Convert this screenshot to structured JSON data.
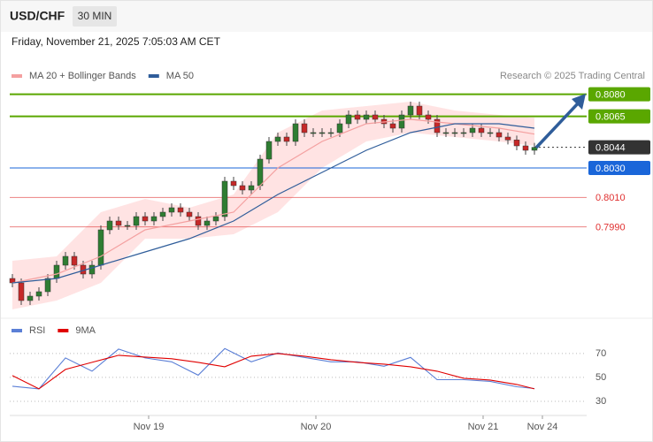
{
  "header": {
    "symbol": "USD/CHF",
    "interval": "30 MIN",
    "timestamp": "Friday, November 21, 2025 7:05:03 AM CET"
  },
  "chart_data": [
    {
      "type": "candlestick",
      "annotation": "Research © 2025 Trading Central",
      "xlim": [
        -0.3,
        64.9
      ],
      "ylim": [
        0.7931,
        0.8108
      ],
      "up_color": "#2e7d32",
      "down_color": "#c62828",
      "open": [
        0.7955,
        0.7952,
        0.794,
        0.7943,
        0.7946,
        0.7955,
        0.7964,
        0.797,
        0.7964,
        0.7958,
        0.7964,
        0.7988,
        0.7994,
        0.7991,
        0.7991,
        0.7997,
        0.7994,
        0.7997,
        0.8,
        0.8003,
        0.8,
        0.7997,
        0.7991,
        0.7994,
        0.7997,
        0.8021,
        0.8018,
        0.8015,
        0.8018,
        0.8036,
        0.8048,
        0.8051,
        0.8048,
        0.806,
        0.8054,
        0.8054,
        0.8054,
        0.8054,
        0.806,
        0.8066,
        0.8063,
        0.8066,
        0.8063,
        0.806,
        0.8057,
        0.8066,
        0.8072,
        0.8066,
        0.8063,
        0.8054,
        0.8054,
        0.8054,
        0.8054,
        0.8057,
        0.8054,
        0.8054,
        0.8051,
        0.8049,
        0.8045,
        0.8042
      ],
      "high": [
        0.7958,
        0.7955,
        0.7946,
        0.7949,
        0.7958,
        0.7967,
        0.7973,
        0.7973,
        0.7967,
        0.7967,
        0.7991,
        0.7997,
        0.7997,
        0.7994,
        0.8,
        0.8,
        0.8,
        0.8003,
        0.8006,
        0.8006,
        0.8003,
        0.8,
        0.7997,
        0.8,
        0.8024,
        0.8024,
        0.8021,
        0.8021,
        0.8039,
        0.8051,
        0.8054,
        0.8054,
        0.8063,
        0.8063,
        0.8057,
        0.8057,
        0.8057,
        0.8063,
        0.8069,
        0.8069,
        0.8069,
        0.8069,
        0.8066,
        0.8063,
        0.8069,
        0.8075,
        0.8075,
        0.8069,
        0.8066,
        0.8057,
        0.8057,
        0.8057,
        0.806,
        0.806,
        0.8057,
        0.8057,
        0.8054,
        0.8052,
        0.8048,
        0.8047
      ],
      "low": [
        0.7949,
        0.7937,
        0.7937,
        0.794,
        0.7943,
        0.7952,
        0.7961,
        0.7961,
        0.7955,
        0.7955,
        0.7961,
        0.7985,
        0.7988,
        0.7988,
        0.7988,
        0.7991,
        0.7991,
        0.7994,
        0.7997,
        0.7997,
        0.7994,
        0.7988,
        0.7988,
        0.7991,
        0.7994,
        0.8015,
        0.8012,
        0.8012,
        0.8015,
        0.8033,
        0.8045,
        0.8045,
        0.8045,
        0.8051,
        0.8051,
        0.8051,
        0.8051,
        0.8051,
        0.8057,
        0.806,
        0.806,
        0.806,
        0.8057,
        0.8054,
        0.8054,
        0.8063,
        0.8063,
        0.806,
        0.8051,
        0.8051,
        0.8051,
        0.8051,
        0.8051,
        0.8051,
        0.8051,
        0.8048,
        0.8046,
        0.8042,
        0.8039,
        0.8039
      ],
      "close": [
        0.7952,
        0.794,
        0.7943,
        0.7946,
        0.7955,
        0.7964,
        0.797,
        0.7964,
        0.7958,
        0.7964,
        0.7988,
        0.7994,
        0.7991,
        0.7991,
        0.7997,
        0.7994,
        0.7997,
        0.8,
        0.8003,
        0.8,
        0.7997,
        0.7991,
        0.7994,
        0.7997,
        0.8021,
        0.8018,
        0.8015,
        0.8018,
        0.8036,
        0.8048,
        0.8051,
        0.8048,
        0.806,
        0.8054,
        0.8054,
        0.8054,
        0.8054,
        0.806,
        0.8066,
        0.8063,
        0.8066,
        0.8063,
        0.806,
        0.8057,
        0.8066,
        0.8072,
        0.8066,
        0.8063,
        0.8054,
        0.8054,
        0.8054,
        0.8054,
        0.8057,
        0.8054,
        0.8054,
        0.8051,
        0.8049,
        0.8045,
        0.8042,
        0.8044
      ],
      "series": [
        {
          "name": "MA 20 + Bollinger Bands",
          "color": "#f4a0a0",
          "band_color": "#ffe3e3",
          "x": [
            0,
            5,
            10,
            15,
            20,
            25,
            30,
            35,
            40,
            45,
            50,
            55,
            59
          ],
          "values": [
            0.7952,
            0.7958,
            0.797,
            0.7988,
            0.7994,
            0.8,
            0.803,
            0.8048,
            0.806,
            0.8063,
            0.806,
            0.8057,
            0.8053
          ],
          "upper": [
            0.7967,
            0.797,
            0.8,
            0.8009,
            0.8003,
            0.8012,
            0.8054,
            0.8069,
            0.8072,
            0.8075,
            0.8069,
            0.8066,
            0.8064
          ],
          "lower": [
            0.7934,
            0.794,
            0.7952,
            0.7982,
            0.7982,
            0.7985,
            0.8,
            0.803,
            0.8048,
            0.8054,
            0.8051,
            0.8048,
            0.8045
          ]
        },
        {
          "name": "MA 50",
          "color": "#2f5d9a",
          "x": [
            0,
            5,
            10,
            15,
            20,
            25,
            30,
            35,
            40,
            45,
            50,
            55,
            59
          ],
          "values": [
            0.7952,
            0.7955,
            0.7964,
            0.7973,
            0.7982,
            0.7994,
            0.8012,
            0.8027,
            0.8042,
            0.8054,
            0.806,
            0.806,
            0.8057
          ]
        }
      ],
      "levels": [
        {
          "value": 0.808,
          "label": "0.8080",
          "color": "#5aa700",
          "boxed": true,
          "style": "solid"
        },
        {
          "value": 0.8065,
          "label": "0.8065",
          "color": "#5aa700",
          "boxed": true,
          "style": "solid"
        },
        {
          "value": 0.8044,
          "label": "0.8044",
          "color": "#333333",
          "boxed": true,
          "style": "dotted"
        },
        {
          "value": 0.803,
          "label": "0.8030",
          "color": "#1a66d9",
          "boxed": true,
          "style": "solid"
        },
        {
          "value": 0.801,
          "label": "0.8010",
          "color": "#e03030",
          "boxed": false,
          "style": "thin"
        },
        {
          "value": 0.799,
          "label": "0.7990",
          "color": "#e03030",
          "boxed": false,
          "style": "thin"
        }
      ]
    },
    {
      "type": "line",
      "xlim": [
        -0.3,
        64.9
      ],
      "ylim": [
        20,
        81
      ],
      "yticks": [
        30,
        50,
        70
      ],
      "xticks": [
        {
          "value": 15.4,
          "label": "Nov 19"
        },
        {
          "value": 34.3,
          "label": "Nov 20"
        },
        {
          "value": 53.2,
          "label": "Nov 21"
        },
        {
          "value": 59.9,
          "label": "Nov 24"
        }
      ],
      "series": [
        {
          "name": "RSI",
          "color": "#5b7fd6",
          "x": [
            0,
            3,
            6,
            9,
            12,
            15,
            18,
            21,
            24,
            27,
            30,
            33,
            36,
            39,
            42,
            45,
            48,
            51,
            54,
            57,
            59
          ],
          "values": [
            42.6,
            40.4,
            66.3,
            55.2,
            73.7,
            66.3,
            63.0,
            51.9,
            74.1,
            63.0,
            70.4,
            66.7,
            63.0,
            63.0,
            59.3,
            66.7,
            48.1,
            48.1,
            46.7,
            42.2,
            40.7
          ]
        },
        {
          "name": "9MA",
          "color": "#e00000",
          "x": [
            0,
            3,
            6,
            9,
            12,
            15,
            18,
            21,
            24,
            27,
            30,
            33,
            36,
            39,
            42,
            45,
            48,
            51,
            54,
            57,
            59
          ],
          "values": [
            51.5,
            40.4,
            56.7,
            62.6,
            68.5,
            67.0,
            65.6,
            62.6,
            58.9,
            67.8,
            70.0,
            67.8,
            64.8,
            62.6,
            61.1,
            58.9,
            55.2,
            49.3,
            47.8,
            44.1,
            40.4
          ]
        }
      ]
    }
  ]
}
